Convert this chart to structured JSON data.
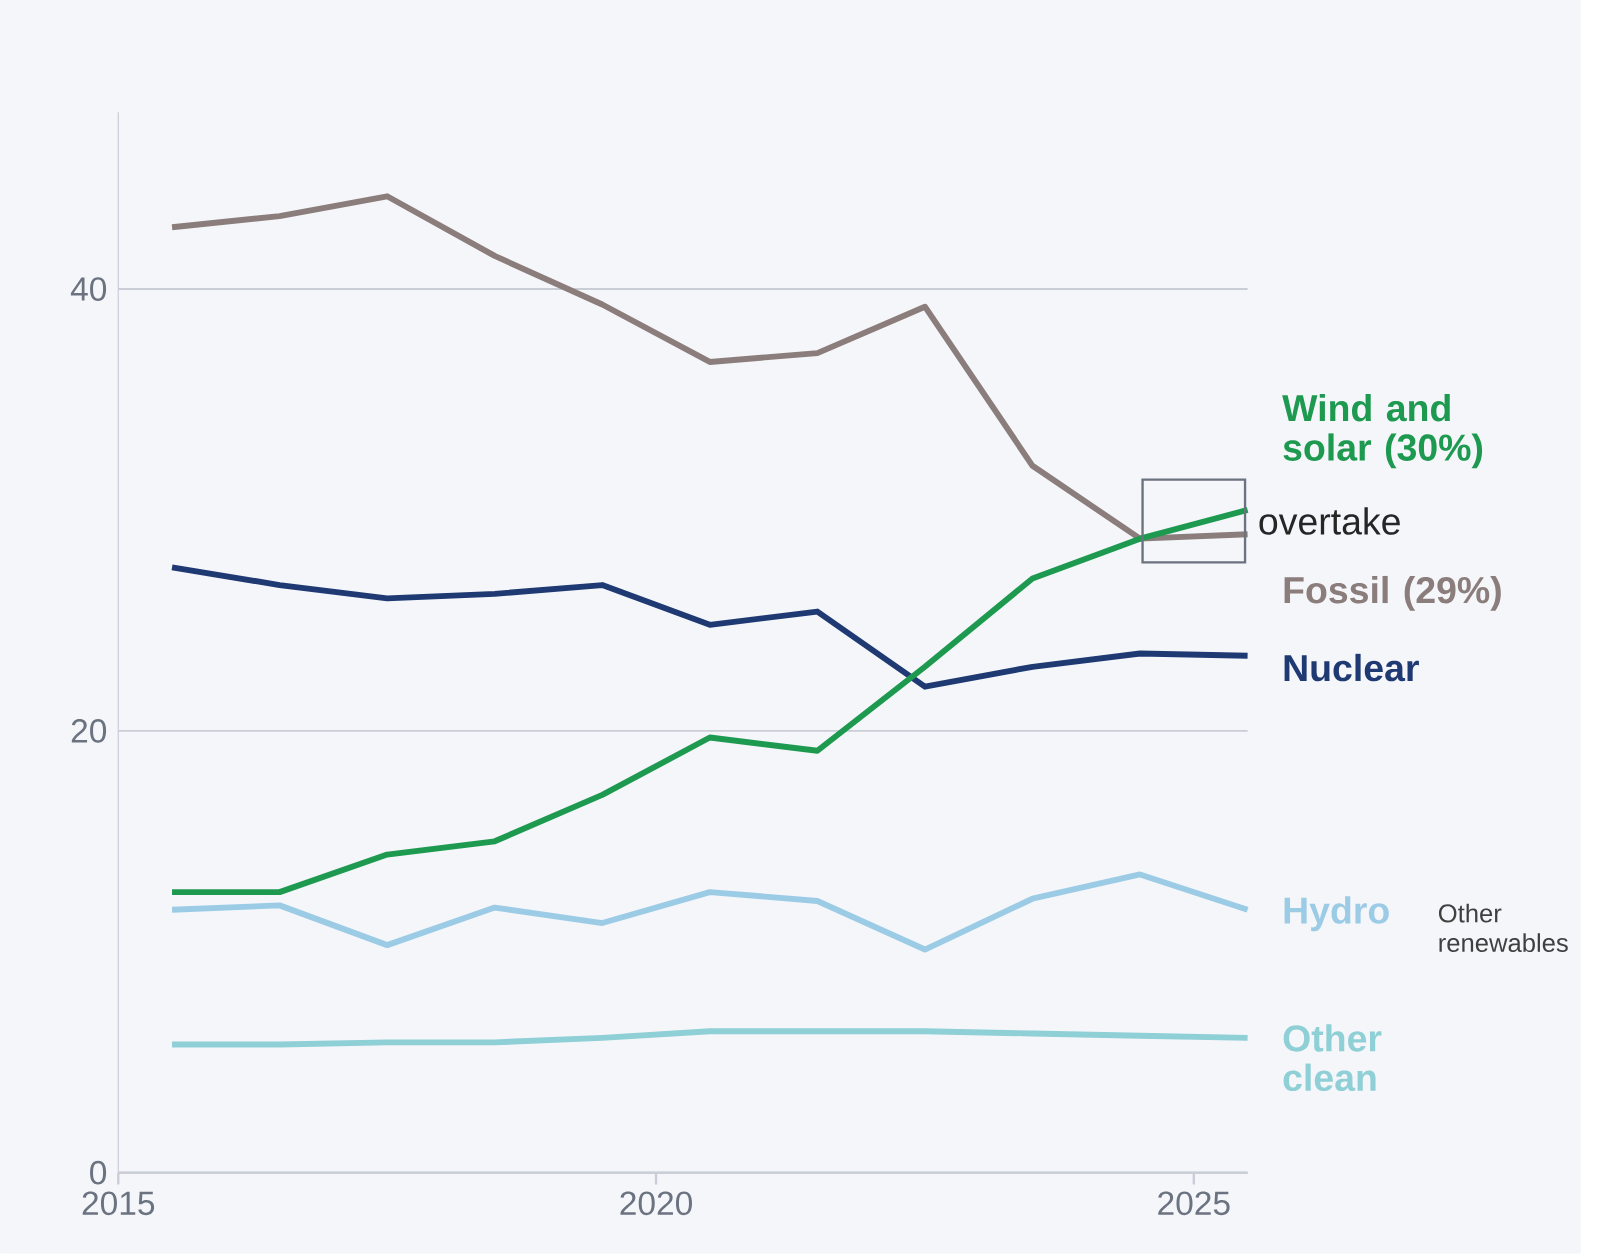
{
  "chart_data": {
    "type": "line",
    "x": [
      2015.5,
      2016.5,
      2017.5,
      2018.5,
      2019.5,
      2020.5,
      2021.5,
      2022.5,
      2023.5,
      2024.5,
      2025.5
    ],
    "series": [
      {
        "name": "Fossil (29%)",
        "color": "#8b7d7b",
        "values": [
          42.8,
          43.3,
          44.2,
          41.5,
          39.3,
          36.7,
          37.1,
          39.2,
          32.0,
          28.7,
          28.9
        ]
      },
      {
        "name": "Nuclear",
        "color": "#1f3a72",
        "values": [
          27.4,
          26.6,
          26.0,
          26.2,
          26.6,
          24.8,
          25.4,
          22.0,
          22.9,
          23.5,
          23.4
        ]
      },
      {
        "name": "Wind and solar (30%)",
        "color": "#1e9a50",
        "values": [
          12.7,
          12.7,
          14.4,
          15.0,
          17.1,
          19.7,
          19.1,
          22.9,
          26.9,
          28.7,
          30.0
        ]
      },
      {
        "name": "Hydro",
        "color": "#9ccbe6",
        "values": [
          11.9,
          12.1,
          10.3,
          12.0,
          11.3,
          12.7,
          12.3,
          10.1,
          12.4,
          13.5,
          11.9
        ]
      },
      {
        "name": "Other clean",
        "color": "#8fcfd6",
        "values": [
          5.8,
          5.8,
          5.9,
          5.9,
          6.1,
          6.4,
          6.4,
          6.4,
          6.3,
          6.2,
          6.1
        ]
      }
    ],
    "xlim": [
      2015,
      2025.5
    ],
    "xticks": [
      2015,
      2020,
      2025
    ],
    "ylim": [
      0,
      48
    ],
    "yticks": [
      0,
      20,
      40
    ],
    "grid": "y",
    "line_style": "solid",
    "marker": "none",
    "annotations": [
      {
        "text": "overtake",
        "x": 2025,
        "y": 29.5
      },
      "Other renewables"
    ]
  }
}
